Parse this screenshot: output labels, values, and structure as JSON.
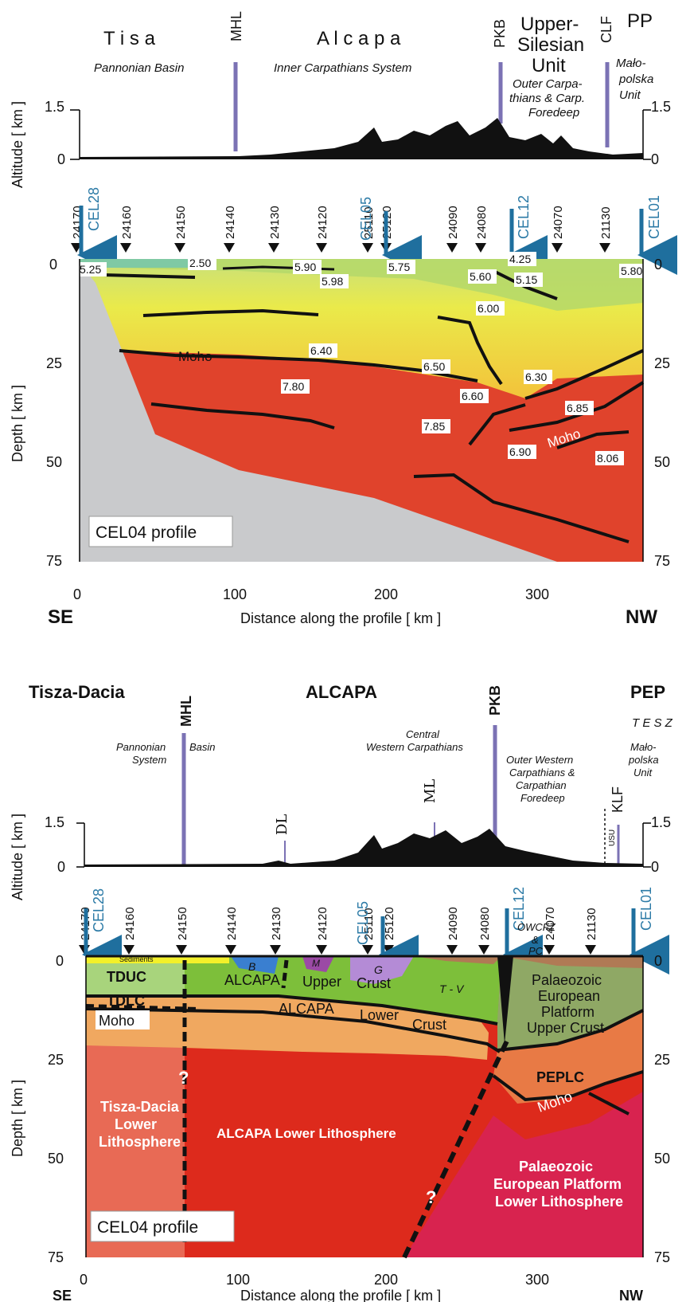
{
  "top": {
    "units": {
      "tisa": "T i s a",
      "alcapa": "A l c a p a",
      "upper_silesian": [
        "Upper-",
        "Silesian",
        "Unit"
      ],
      "pp": "PP"
    },
    "sub": {
      "pannonian": "Pannonian Basin",
      "inner": "Inner Carpathians System",
      "outer": [
        "Outer Carpa-",
        "thians & Carp.",
        "Foredeep"
      ],
      "malopolska": [
        "Mało-",
        "polska",
        "Unit"
      ]
    },
    "faults": [
      "MHL",
      "PKB",
      "CLF"
    ],
    "alt_axis_label": "Altitude  [ km ]",
    "alt_ticks": [
      "1.5",
      "0"
    ],
    "stations": [
      "24170",
      "24160",
      "24150",
      "24140",
      "24130",
      "24120",
      "25110",
      "25120",
      "24090",
      "24080",
      "24070",
      "21130"
    ],
    "cel": [
      "CEL28",
      "CEL05",
      "CEL12",
      "CEL01"
    ],
    "velocities": [
      "5.25",
      "2.50",
      "5.90",
      "5.98",
      "5.75",
      "4.25",
      "5.60",
      "5.15",
      "5.80",
      "6.00",
      "6.40",
      "6.50",
      "6.30",
      "6.60",
      "7.80",
      "7.85",
      "6.85",
      "6.90",
      "8.06"
    ],
    "moho": "Moho",
    "depth_axis_label": "Depth  [ km ]",
    "depth_ticks": [
      "0",
      "25",
      "50",
      "75"
    ],
    "profile_label": "CEL04  profile",
    "x_ticks": [
      "0",
      "100",
      "200",
      "300"
    ],
    "se": "SE",
    "nw": "NW",
    "x_label": "Distance along the profile   [ km ]"
  },
  "bottom": {
    "units": {
      "tisza": "Tisza-Dacia",
      "alcapa": "ALCAPA",
      "pep": "PEP",
      "tesz": "T E S Z"
    },
    "faults": [
      "MHL",
      "PKB",
      "KLF",
      "DL",
      "ML",
      "USU"
    ],
    "sub": {
      "pannonian": [
        "Pannonian",
        "System"
      ],
      "basin": "Basin",
      "central": [
        "Central",
        "Western Carpathians"
      ],
      "outer": [
        "Outer Western",
        "Carpathians &",
        "Carpathian",
        "Foredeep"
      ],
      "malopolska": [
        "Mało-",
        "polska",
        "Unit"
      ]
    },
    "alt_axis_label": "Altitude  [ km ]",
    "alt_ticks": [
      "1.5",
      "0"
    ],
    "stations": [
      "24170",
      "24160",
      "24150",
      "24140",
      "24130",
      "24120",
      "25110",
      "25120",
      "24090",
      "24080",
      "24070",
      "21130"
    ],
    "cel": [
      "CEL28",
      "CEL05",
      "CEL12",
      "CEL01"
    ],
    "labels": {
      "sediments": "Sediments",
      "b": "B",
      "m": "M",
      "g": "G",
      "tv": "T - V",
      "owcfz": [
        "OWCFZ",
        "&",
        "PC"
      ],
      "tduc": "TDUC",
      "tdlc": "TDLC",
      "moho": "Moho",
      "alcapa_upper": [
        "ALCAPA",
        "Upper",
        "Crust"
      ],
      "alcapa_lower": [
        "ALCAPA",
        "Lower",
        "Crust"
      ],
      "pep_upper": [
        "Palaeozoic",
        "European",
        "Platform",
        "Upper Crust"
      ],
      "peplc": "PEPLC",
      "moho2": "Moho",
      "tisza_lower": [
        "Tisza-Dacia",
        "Lower",
        "Lithosphere"
      ],
      "alcapa_lith": "ALCAPA Lower Lithosphere",
      "pep_lower": [
        "Palaeozoic",
        "European Platform",
        "Lower Lithosphere"
      ],
      "q": "?"
    },
    "depth_axis_label": "Depth  [ km ]",
    "depth_ticks": [
      "0",
      "25",
      "50",
      "75"
    ],
    "profile_label": "CEL04  profile",
    "x_ticks": [
      "0",
      "100",
      "200",
      "300"
    ],
    "se": "SE",
    "nw": "NW",
    "x_label": "Distance along the profile   [ km ]"
  },
  "colors": {
    "fault_line": "#7b72b4",
    "cel_arrow": "#1f6f9e",
    "mantle_red": "#e0432c",
    "upper_yellow": "#e8e84a",
    "green_top": "#a6d06a",
    "grey": "#c9cacc",
    "tduc": "#a8d47c",
    "alcapa_uc": "#7dbf3a",
    "lower_crust": "#f0a860",
    "alcapa_lith": "#dd2a1c",
    "tisza_lith": "#e86a55",
    "pep_uc": "#8fa865",
    "peplc": "#e87a45",
    "pep_lith": "#d8234f"
  }
}
